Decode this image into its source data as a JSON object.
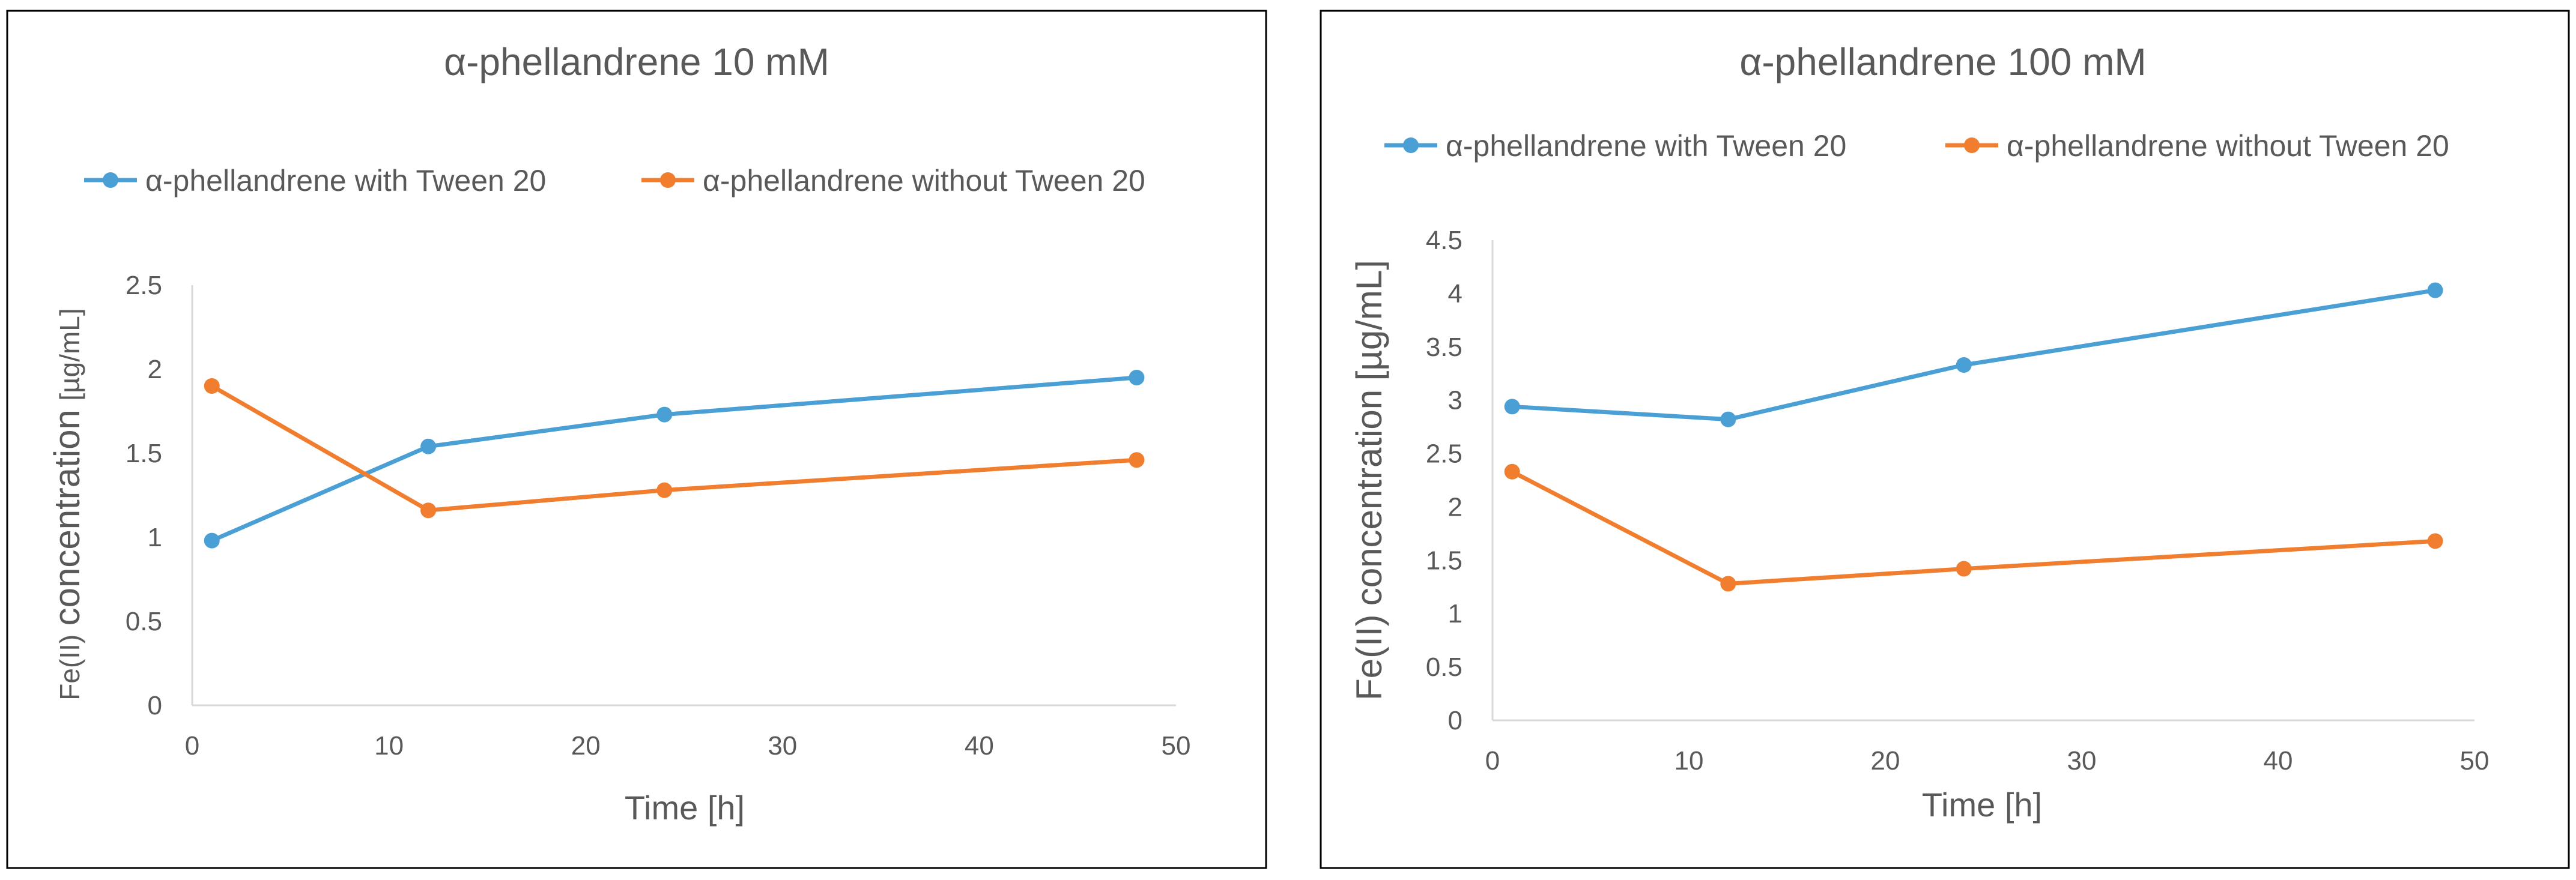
{
  "chart_data": [
    {
      "type": "line",
      "title": "α-phellandrene  10 mM",
      "xlabel": "Time [h]",
      "ylabel_prefix": "Fe(II)",
      "ylabel_main": "concentration",
      "ylabel_unit": "[µg/mL]",
      "xlim": [
        0,
        50
      ],
      "ylim": [
        0,
        2.5
      ],
      "xticks": [
        0,
        10,
        20,
        30,
        40,
        50
      ],
      "yticks": [
        0,
        0.5,
        1,
        1.5,
        2,
        2.5
      ],
      "ytick_labels": [
        "0",
        "0.5",
        "1",
        "1.5",
        "2",
        "2.5"
      ],
      "grid": false,
      "legend_position": "top",
      "series": [
        {
          "name": "α-phellandrene with Tween 20",
          "color": "#4a9fd5",
          "x": [
            1,
            12,
            24,
            48
          ],
          "values": [
            0.98,
            1.54,
            1.73,
            1.95
          ]
        },
        {
          "name": "α-phellandrene without  Tween 20",
          "color": "#f07e2e",
          "x": [
            1,
            12,
            24,
            48
          ],
          "values": [
            1.9,
            1.16,
            1.28,
            1.46
          ]
        }
      ]
    },
    {
      "type": "line",
      "title": "α-phellandrene  100 mM",
      "xlabel": "Time [h]",
      "ylabel_prefix": "Fe(II)",
      "ylabel_main": "concentration",
      "ylabel_unit": "[µg/mL]",
      "xlim": [
        0,
        50
      ],
      "ylim": [
        0,
        4.5
      ],
      "xticks": [
        0,
        10,
        20,
        30,
        40,
        50
      ],
      "yticks": [
        0,
        0.5,
        1,
        1.5,
        2,
        2.5,
        3,
        3.5,
        4,
        4.5
      ],
      "ytick_labels": [
        "0",
        "0.5",
        "1",
        "1.5",
        "2",
        "2.5",
        "3",
        "3.5",
        "4",
        "4.5"
      ],
      "grid": false,
      "legend_position": "top",
      "series": [
        {
          "name": "α-phellandrene with Tween 20",
          "color": "#4a9fd5",
          "x": [
            1,
            12,
            24,
            48
          ],
          "values": [
            2.94,
            2.82,
            3.33,
            4.03
          ]
        },
        {
          "name": "α-phellandrene without  Tween 20",
          "color": "#f07e2e",
          "x": [
            1,
            12,
            24,
            48
          ],
          "values": [
            2.33,
            1.28,
            1.42,
            1.68
          ]
        }
      ]
    }
  ]
}
